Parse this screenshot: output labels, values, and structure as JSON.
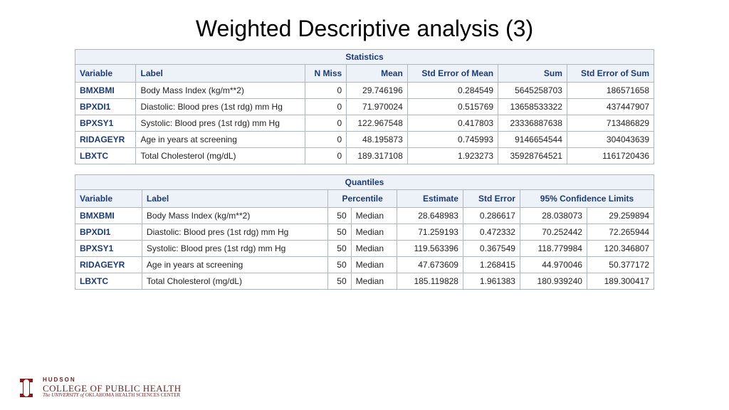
{
  "title": "Weighted Descriptive analysis (3)",
  "colors": {
    "header_bg": "#edf2f9",
    "header_fg": "#1a3a7a",
    "border": "#b0b7bb",
    "var_fg": "#1a3a7a",
    "page_bg": "#ffffff",
    "brand": "#6b1f1f"
  },
  "stats": {
    "caption": "Statistics",
    "columns": [
      "Variable",
      "Label",
      "N Miss",
      "Mean",
      "Std Error of Mean",
      "Sum",
      "Std Error of Sum"
    ],
    "rows": [
      {
        "var": "BMXBMI",
        "label": "Body Mass Index (kg/m**2)",
        "nmiss": "0",
        "mean": "29.746196",
        "se_mean": "0.284549",
        "sum": "5645258703",
        "se_sum": "186571658"
      },
      {
        "var": "BPXDI1",
        "label": "Diastolic: Blood pres (1st rdg) mm Hg",
        "nmiss": "0",
        "mean": "71.970024",
        "se_mean": "0.515769",
        "sum": "13658533322",
        "se_sum": "437447907"
      },
      {
        "var": "BPXSY1",
        "label": "Systolic: Blood pres (1st rdg) mm Hg",
        "nmiss": "0",
        "mean": "122.967548",
        "se_mean": "0.417803",
        "sum": "23336887638",
        "se_sum": "713486829"
      },
      {
        "var": "RIDAGEYR",
        "label": "Age in years at screening",
        "nmiss": "0",
        "mean": "48.195873",
        "se_mean": "0.745993",
        "sum": "9146654544",
        "se_sum": "304043639"
      },
      {
        "var": "LBXTC",
        "label": "Total Cholesterol (mg/dL)",
        "nmiss": "0",
        "mean": "189.317108",
        "se_mean": "1.923273",
        "sum": "35928764521",
        "se_sum": "1161720436"
      }
    ]
  },
  "quant": {
    "caption": "Quantiles",
    "columns": [
      "Variable",
      "Label",
      "Percentile",
      "Estimate",
      "Std Error",
      "95% Confidence Limits"
    ],
    "rows": [
      {
        "var": "BMXBMI",
        "label": "Body Mass Index (kg/m**2)",
        "pn": "50",
        "pl": "Median",
        "est": "28.648983",
        "se": "0.286617",
        "cl_lo": "28.038073",
        "cl_hi": "29.259894"
      },
      {
        "var": "BPXDI1",
        "label": "Diastolic: Blood pres (1st rdg) mm Hg",
        "pn": "50",
        "pl": "Median",
        "est": "71.259193",
        "se": "0.472332",
        "cl_lo": "70.252442",
        "cl_hi": "72.265944"
      },
      {
        "var": "BPXSY1",
        "label": "Systolic: Blood pres (1st rdg) mm Hg",
        "pn": "50",
        "pl": "Median",
        "est": "119.563396",
        "se": "0.367549",
        "cl_lo": "118.779984",
        "cl_hi": "120.346807"
      },
      {
        "var": "RIDAGEYR",
        "label": "Age in years at screening",
        "pn": "50",
        "pl": "Median",
        "est": "47.673609",
        "se": "1.268415",
        "cl_lo": "44.970046",
        "cl_hi": "50.377172"
      },
      {
        "var": "LBXTC",
        "label": "Total Cholesterol (mg/dL)",
        "pn": "50",
        "pl": "Median",
        "est": "185.119828",
        "se": "1.961383",
        "cl_lo": "180.939240",
        "cl_hi": "189.300417"
      }
    ]
  },
  "footer": {
    "l1": "HUDSON",
    "l2": "COLLEGE OF PUBLIC HEALTH",
    "l3a": "The UNIVERSITY of ",
    "l3b": "OKLAHOMA HEALTH SCIENCES CENTER"
  }
}
